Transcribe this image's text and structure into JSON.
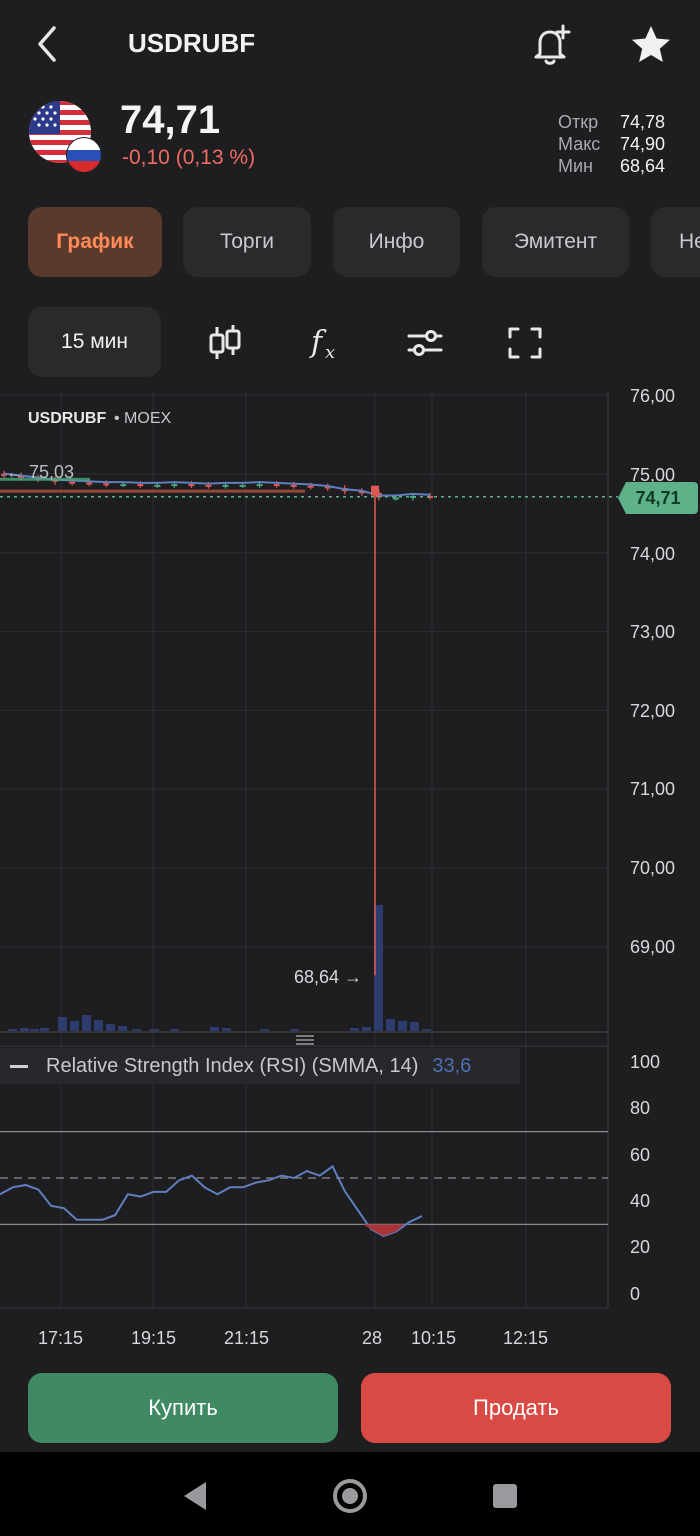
{
  "header": {
    "title": "USDRUBF",
    "back_icon": "chevron-left-icon",
    "alert_icon": "bell-plus-icon",
    "favorite_icon": "star-icon"
  },
  "quote": {
    "price": "74,71",
    "change": "-0,10 (0,13 %)",
    "stats": [
      {
        "label": "Откр",
        "value": "74,78"
      },
      {
        "label": "Макс",
        "value": "74,90"
      },
      {
        "label": "Мин",
        "value": "68,64"
      }
    ]
  },
  "tabs": [
    {
      "label": "График",
      "active": true
    },
    {
      "label": "Торги"
    },
    {
      "label": "Инфо"
    },
    {
      "label": "Эмитент"
    },
    {
      "label": "Не"
    }
  ],
  "toolbar": {
    "interval": "15 мин",
    "icons": [
      "candlestick-icon",
      "function-icon",
      "settings-sliders-icon",
      "fullscreen-icon"
    ]
  },
  "chart": {
    "symbol": "USDRUBF",
    "exchange": "• MOEX",
    "y_ticks": [
      "76,00",
      "75,00",
      "74,00",
      "73,00",
      "72,00",
      "71,00",
      "70,00",
      "69,00"
    ],
    "current_price_tag": "74,71",
    "high_marker": "75,03",
    "low_marker": "68,64",
    "rsi_title": "Relative Strength Index (RSI) (SMMA, 14)",
    "rsi_value": "33,6",
    "rsi_ticks": [
      "100",
      "80",
      "60",
      "40",
      "20",
      "0"
    ],
    "x_ticks": [
      "17:15",
      "19:15",
      "21:15",
      "28",
      "10:15",
      "12:15"
    ]
  },
  "chart_data": {
    "type": "candlestick",
    "symbol": "USDRUBF",
    "interval": "15 мин",
    "ylim": [
      68.3,
      76.0
    ],
    "y_ticks": [
      76,
      75,
      74,
      73,
      72,
      71,
      70,
      69
    ],
    "x_ticks": [
      "17:15",
      "19:15",
      "21:15",
      "28",
      "10:15",
      "12:15"
    ],
    "last_price": 74.71,
    "annotations": [
      {
        "label": "75,03",
        "value": 75.03
      },
      {
        "label": "68,64",
        "value": 68.64
      }
    ],
    "close_series": [
      74.98,
      74.95,
      74.93,
      74.9,
      74.89,
      74.88,
      74.87,
      74.87,
      74.86,
      74.86,
      74.87,
      74.86,
      74.85,
      74.86,
      74.86,
      74.87,
      74.86,
      74.85,
      74.84,
      74.82,
      74.78,
      74.76,
      74.7,
      74.7,
      74.72,
      74.71
    ],
    "rsi": {
      "name": "Relative Strength Index (RSI) (SMMA, 14)",
      "last": 33.6,
      "ylim": [
        0,
        100
      ],
      "y_ticks": [
        100,
        80,
        60,
        40,
        20,
        0
      ],
      "levels": [
        70,
        50,
        30
      ],
      "values": [
        43,
        46,
        47,
        45,
        38,
        37,
        32,
        32,
        32,
        34,
        43,
        42,
        44,
        44,
        49,
        51,
        46,
        43,
        46,
        46,
        48,
        49,
        51,
        50,
        53,
        51,
        55,
        44,
        36,
        28,
        25,
        27,
        31,
        33.6
      ]
    }
  },
  "actions": {
    "buy": "Купить",
    "sell": "Продать"
  },
  "navbar": {
    "icons": [
      "back-triangle-icon",
      "home-circle-icon",
      "recents-square-icon"
    ]
  }
}
